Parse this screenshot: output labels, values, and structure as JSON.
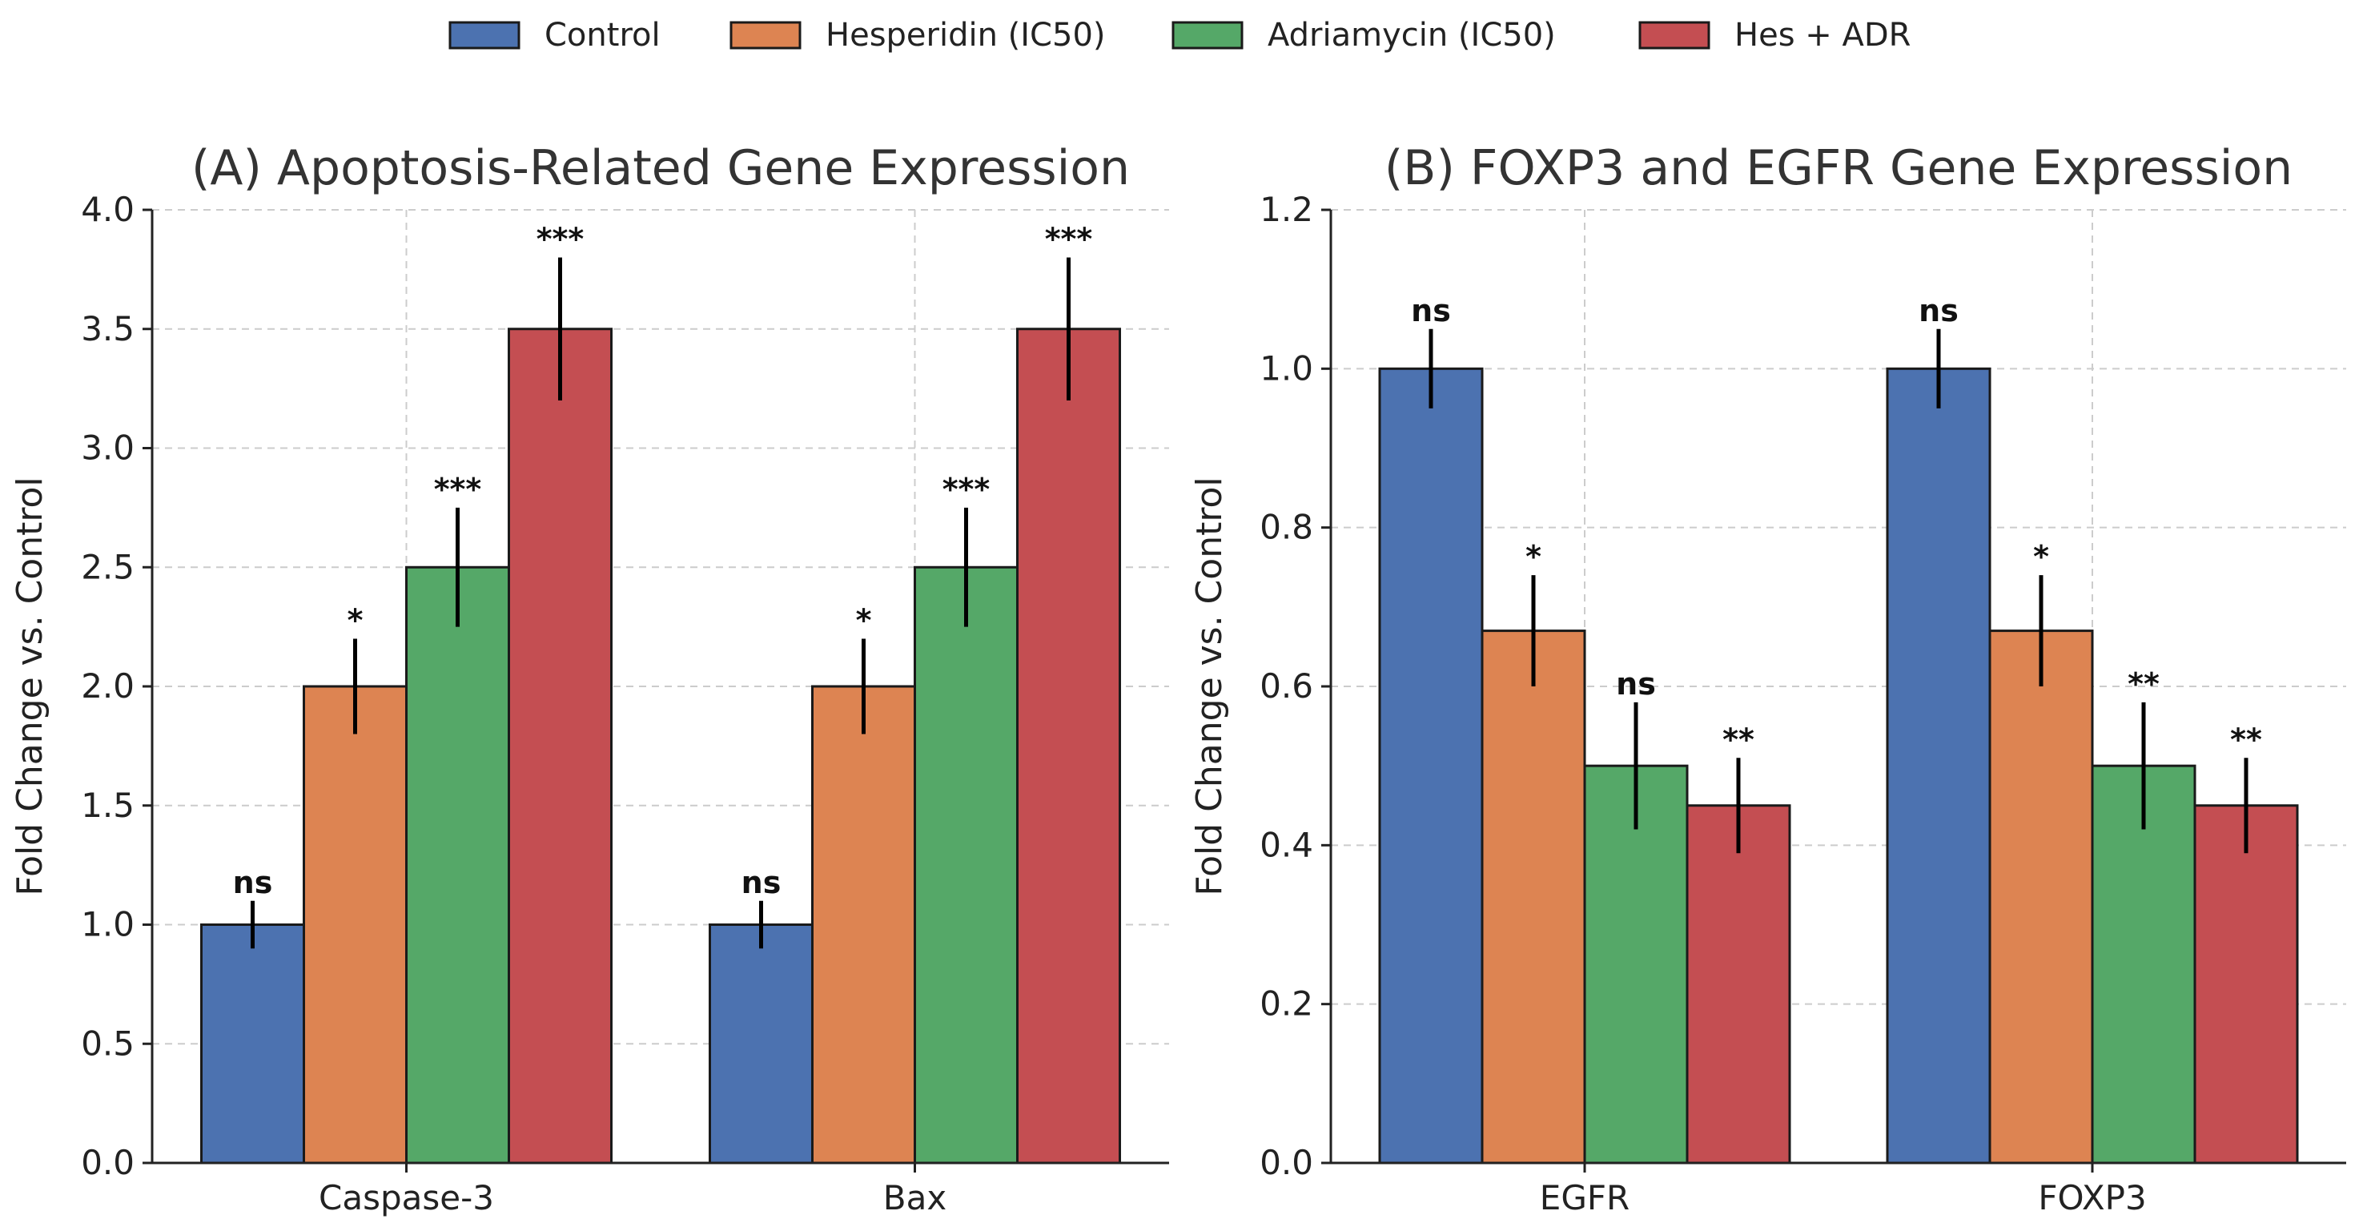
{
  "legend": [
    {
      "label": "Control",
      "color": "#4c72b0"
    },
    {
      "label": "Hesperidin (IC50)",
      "color": "#dd8452"
    },
    {
      "label": "Adriamycin (IC50)",
      "color": "#55a868"
    },
    {
      "label": "Hes + ADR",
      "color": "#c44e52"
    }
  ],
  "chart_data": [
    {
      "type": "bar",
      "title": "(A) Apoptosis-Related Gene Expression",
      "xlabel": "",
      "ylabel": "Fold Change vs. Control",
      "categories": [
        "Caspase-3",
        "Bax"
      ],
      "ylim": [
        0,
        4.0
      ],
      "yticks": [
        "0.0",
        "0.5",
        "1.0",
        "1.5",
        "2.0",
        "2.5",
        "3.0",
        "3.5",
        "4.0"
      ],
      "ytick_values": [
        0,
        0.5,
        1.0,
        1.5,
        2.0,
        2.5,
        3.0,
        3.5,
        4.0
      ],
      "grid": true,
      "series": [
        {
          "name": "Control",
          "color": "#4c72b0",
          "values": [
            1.0,
            1.0
          ],
          "errors": [
            0.1,
            0.1
          ],
          "significance": [
            "ns",
            "ns"
          ]
        },
        {
          "name": "Hesperidin (IC50)",
          "color": "#dd8452",
          "values": [
            2.0,
            2.0
          ],
          "errors": [
            0.2,
            0.2
          ],
          "significance": [
            "*",
            "*"
          ]
        },
        {
          "name": "Adriamycin (IC50)",
          "color": "#55a868",
          "values": [
            2.5,
            2.5
          ],
          "errors": [
            0.25,
            0.25
          ],
          "significance": [
            "***",
            "***"
          ]
        },
        {
          "name": "Hes + ADR",
          "color": "#c44e52",
          "values": [
            3.5,
            3.5
          ],
          "errors": [
            0.3,
            0.3
          ],
          "significance": [
            "***",
            "***"
          ]
        }
      ]
    },
    {
      "type": "bar",
      "title": "(B) FOXP3 and EGFR Gene Expression",
      "xlabel": "",
      "ylabel": "Fold Change vs. Control",
      "categories": [
        "EGFR",
        "FOXP3"
      ],
      "ylim": [
        0,
        1.2
      ],
      "yticks": [
        "0.0",
        "0.2",
        "0.4",
        "0.6",
        "0.8",
        "1.0",
        "1.2"
      ],
      "ytick_values": [
        0,
        0.2,
        0.4,
        0.6,
        0.8,
        1.0,
        1.2
      ],
      "grid": true,
      "series": [
        {
          "name": "Control",
          "color": "#4c72b0",
          "values": [
            1.0,
            1.0
          ],
          "errors": [
            0.05,
            0.05
          ],
          "significance": [
            "ns",
            "ns"
          ]
        },
        {
          "name": "Hesperidin (IC50)",
          "color": "#dd8452",
          "values": [
            0.67,
            0.67
          ],
          "errors": [
            0.07,
            0.07
          ],
          "significance": [
            "*",
            "*"
          ]
        },
        {
          "name": "Adriamycin (IC50)",
          "color": "#55a868",
          "values": [
            0.5,
            0.5
          ],
          "errors": [
            0.08,
            0.08
          ],
          "significance": [
            "ns",
            "**"
          ]
        },
        {
          "name": "Hes + ADR",
          "color": "#c44e52",
          "values": [
            0.45,
            0.45
          ],
          "errors": [
            0.06,
            0.06
          ],
          "significance": [
            "**",
            "**"
          ]
        }
      ]
    }
  ]
}
